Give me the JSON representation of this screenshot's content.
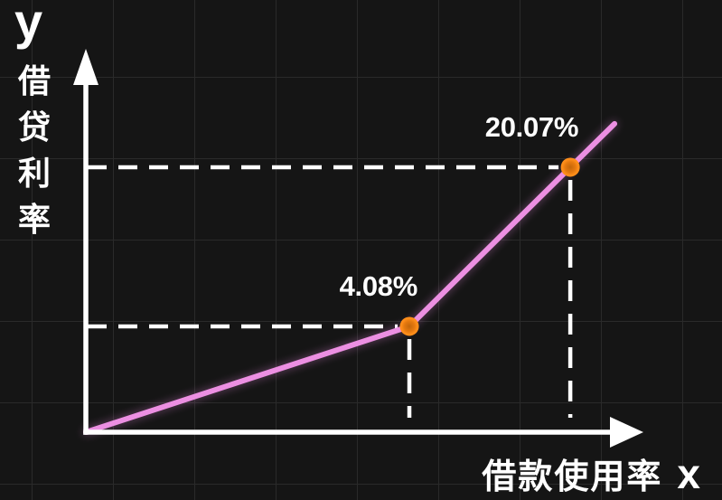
{
  "colors": {
    "background": "#151515",
    "grid": "#2a2a2a",
    "axis": "#ffffff",
    "curve": "#ec8fe2",
    "curve_glow": "rgba(236,143,226,0.45)",
    "marker_inner": "#c4660a",
    "marker_mid": "#e5790f",
    "marker_outer": "#ff8e1a",
    "label_text": "#ffffff"
  },
  "axes": {
    "y_letter": "y",
    "y_title": "借贷利率",
    "x_title": "借款使用率",
    "x_letter": "x"
  },
  "chart_data": {
    "type": "line",
    "title": "",
    "xlabel": "借款使用率",
    "ylabel": "借贷利率",
    "x_axis_letter": "x",
    "y_axis_letter": "y",
    "grid": true,
    "legend": null,
    "axis_tick_labels": false,
    "note": "schematic kinked interest-rate curve; axes carry no numeric scale, point positions are normalized 0-1 fractions of each axis",
    "points": [
      {
        "u": 0.0,
        "r": 0.0,
        "label": null,
        "marker": false
      },
      {
        "u": 0.585,
        "r": 0.28,
        "label": "4.08%",
        "marker": true
      },
      {
        "u": 0.876,
        "r": 0.701,
        "label": "20.07%",
        "marker": true
      },
      {
        "u": 0.956,
        "r": 0.816,
        "label": null,
        "marker": false
      }
    ],
    "annotations": [
      "4.08%",
      "20.07%"
    ]
  }
}
